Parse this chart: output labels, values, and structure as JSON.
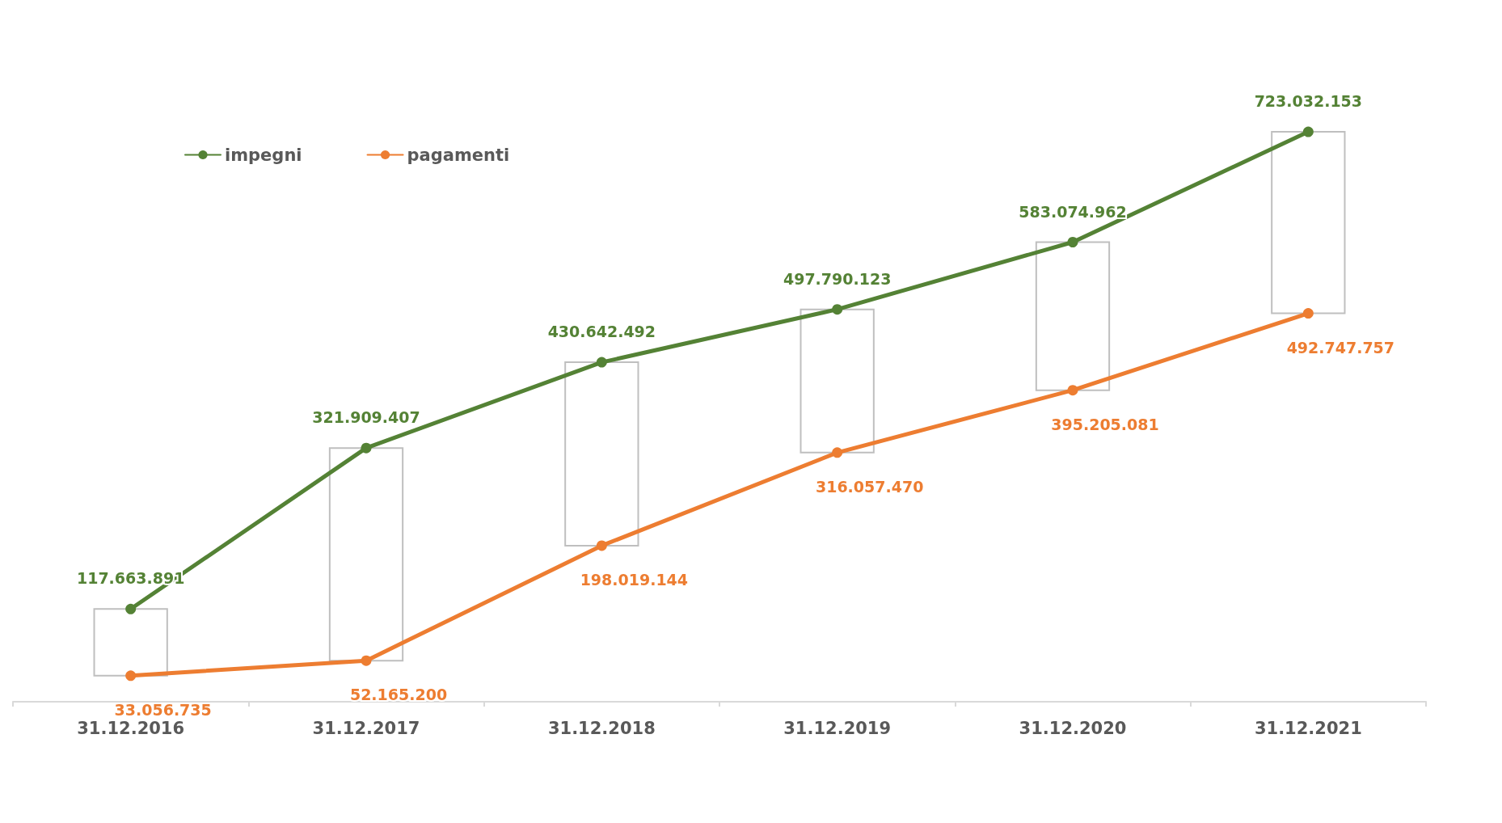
{
  "chart_data": {
    "type": "line",
    "categories": [
      "31.12.2016",
      "31.12.2017",
      "31.12.2018",
      "31.12.2019",
      "31.12.2020",
      "31.12.2021"
    ],
    "series": [
      {
        "name": "impegni",
        "color": "#548235",
        "values": [
          117663891,
          321909407,
          430642492,
          497790123,
          583074962,
          723032153
        ],
        "value_labels": [
          "117.663.891",
          "321.909.407",
          "430.642.492",
          "497.790.123",
          "583.074.962",
          "723.032.153"
        ]
      },
      {
        "name": "pagamenti",
        "color": "#ed7d31",
        "values": [
          33056735,
          52165200,
          198019144,
          316057470,
          395205081,
          492747757
        ],
        "value_labels": [
          "33.056.735",
          "52.165.200",
          "198.019.144",
          "316.057.470",
          "395.205.081",
          "492.747.757"
        ]
      }
    ],
    "legend": "top left",
    "marker": "circle",
    "line_style": "solid",
    "grid": false
  }
}
